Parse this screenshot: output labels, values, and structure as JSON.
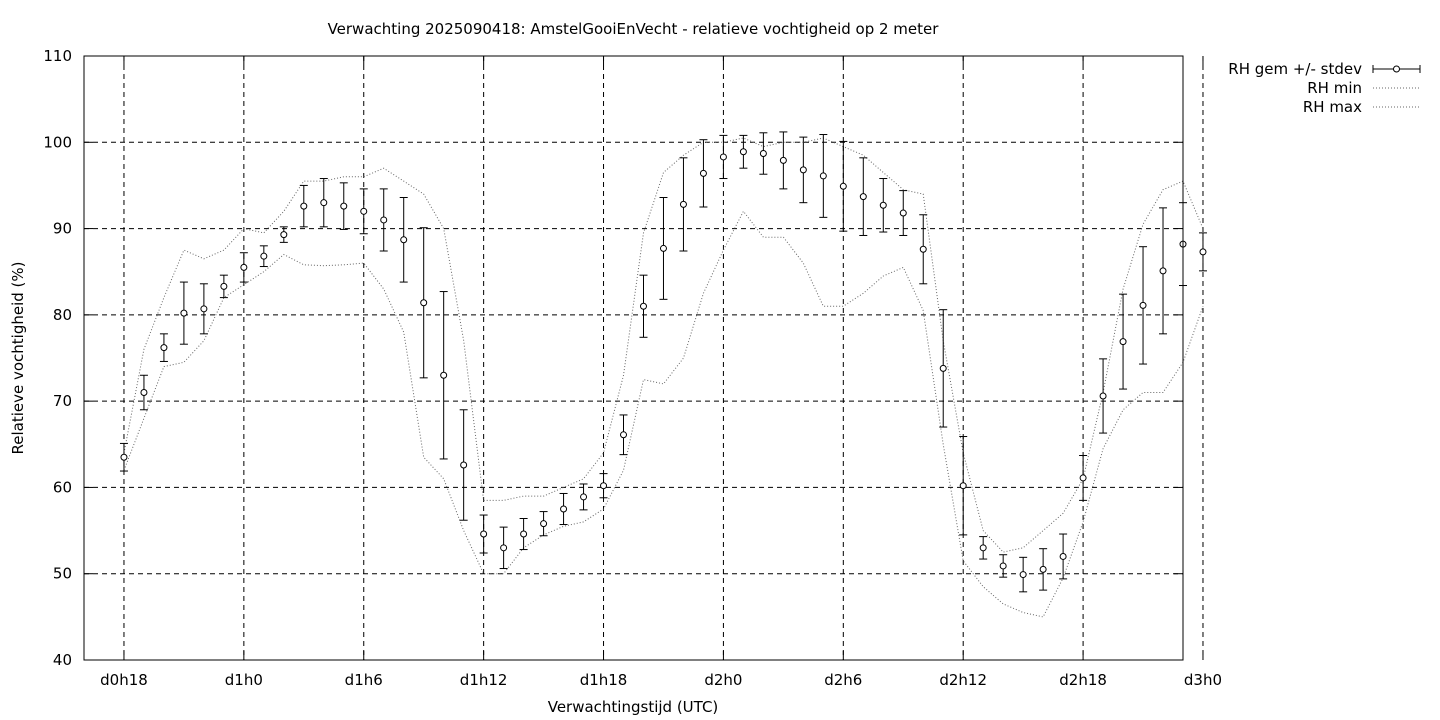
{
  "chart_data": {
    "type": "line",
    "title": "Verwachting 2025090418: AmstelGooiEnVecht - relatieve vochtigheid op 2 meter",
    "xlabel": "Verwachtingstijd (UTC)",
    "ylabel": "Relatieve vochtigheid (%)",
    "xlim": [
      16,
      71
    ],
    "ylim": [
      40,
      110
    ],
    "yticks": [
      40,
      50,
      60,
      70,
      80,
      90,
      100,
      110
    ],
    "xticks": [
      {
        "value": 18,
        "label": "d0h18"
      },
      {
        "value": 24,
        "label": "d1h0"
      },
      {
        "value": 30,
        "label": "d1h6"
      },
      {
        "value": 36,
        "label": "d1h12"
      },
      {
        "value": 42,
        "label": "d1h18"
      },
      {
        "value": 48,
        "label": "d2h0"
      },
      {
        "value": 54,
        "label": "d2h6"
      },
      {
        "value": 60,
        "label": "d2h12"
      },
      {
        "value": 66,
        "label": "d2h18"
      },
      {
        "value": 72,
        "label": "d3h0"
      }
    ],
    "grid": true,
    "legend_position": "outside-top-right",
    "x": [
      18,
      19,
      20,
      21,
      22,
      23,
      24,
      25,
      26,
      27,
      28,
      29,
      30,
      31,
      32,
      33,
      34,
      35,
      36,
      37,
      38,
      39,
      40,
      41,
      42,
      43,
      44,
      45,
      46,
      47,
      48,
      49,
      50,
      51,
      52,
      53,
      54,
      55,
      56,
      57,
      58,
      59,
      60,
      61,
      62,
      63,
      64,
      65,
      66,
      67,
      68,
      69,
      70,
      71,
      72
    ],
    "series": [
      {
        "name": "RH gem +/- stdev",
        "style": "errorbars",
        "values": [
          63.5,
          71,
          76.2,
          80.2,
          80.7,
          83.3,
          85.5,
          86.8,
          89.3,
          92.6,
          93,
          92.6,
          92,
          91,
          88.7,
          81.4,
          73,
          62.6,
          54.6,
          53,
          54.6,
          55.8,
          57.5,
          58.9,
          60.2,
          66.1,
          81,
          87.7,
          92.8,
          96.4,
          98.3,
          98.9,
          98.7,
          97.9,
          96.8,
          96.1,
          94.9,
          93.7,
          92.7,
          91.8,
          87.6,
          73.8,
          60.2,
          53,
          50.9,
          49.9,
          50.5,
          52,
          61.1,
          70.6,
          76.9,
          81.1,
          85.1,
          88.2,
          87.3
        ],
        "stdev": [
          1.6,
          2,
          1.6,
          3.6,
          2.9,
          1.3,
          1.7,
          1.2,
          0.9,
          2.4,
          2.8,
          2.7,
          2.6,
          3.6,
          4.9,
          8.7,
          9.7,
          6.4,
          2.2,
          2.4,
          1.8,
          1.4,
          1.8,
          1.5,
          1.4,
          2.3,
          3.6,
          5.9,
          5.4,
          3.9,
          2.5,
          1.9,
          2.4,
          3.3,
          3.8,
          4.8,
          5.2,
          4.5,
          3.1,
          2.6,
          4,
          6.8,
          5.7,
          1.3,
          1.3,
          2,
          2.4,
          2.6,
          2.6,
          4.3,
          5.5,
          6.8,
          7.3,
          4.8,
          2.2
        ]
      },
      {
        "name": "RH min",
        "style": "dotted",
        "values": [
          62,
          68,
          74,
          74.5,
          77,
          82,
          83.5,
          85,
          87,
          85.8,
          85.7,
          85.8,
          86,
          83,
          78,
          63.5,
          61,
          55,
          50,
          50,
          53,
          54.5,
          55.5,
          56,
          57.5,
          62,
          72.5,
          72,
          75,
          82.5,
          87.5,
          92,
          89,
          89,
          86,
          81,
          81,
          82.5,
          84.5,
          85.5,
          80.5,
          65,
          51.5,
          48.5,
          46.5,
          45.5,
          45,
          49.5,
          56,
          64.5,
          69,
          71,
          71,
          74.5,
          81
        ]
      },
      {
        "name": "RH max",
        "style": "dotted",
        "values": [
          64,
          76,
          82,
          87.5,
          86.5,
          87.5,
          90,
          89.5,
          92,
          95.5,
          95.5,
          96,
          96,
          97,
          95.5,
          94,
          90,
          77,
          58.5,
          58.5,
          59,
          59,
          60,
          61,
          64,
          73,
          89.5,
          96.5,
          98.5,
          100,
          100,
          100.5,
          99.5,
          100,
          100,
          100.5,
          99.5,
          98.5,
          96.5,
          94.5,
          94,
          77,
          64,
          55,
          52.5,
          53,
          55,
          57,
          61,
          71,
          83,
          90.5,
          94.5,
          95.5,
          90
        ]
      }
    ]
  }
}
